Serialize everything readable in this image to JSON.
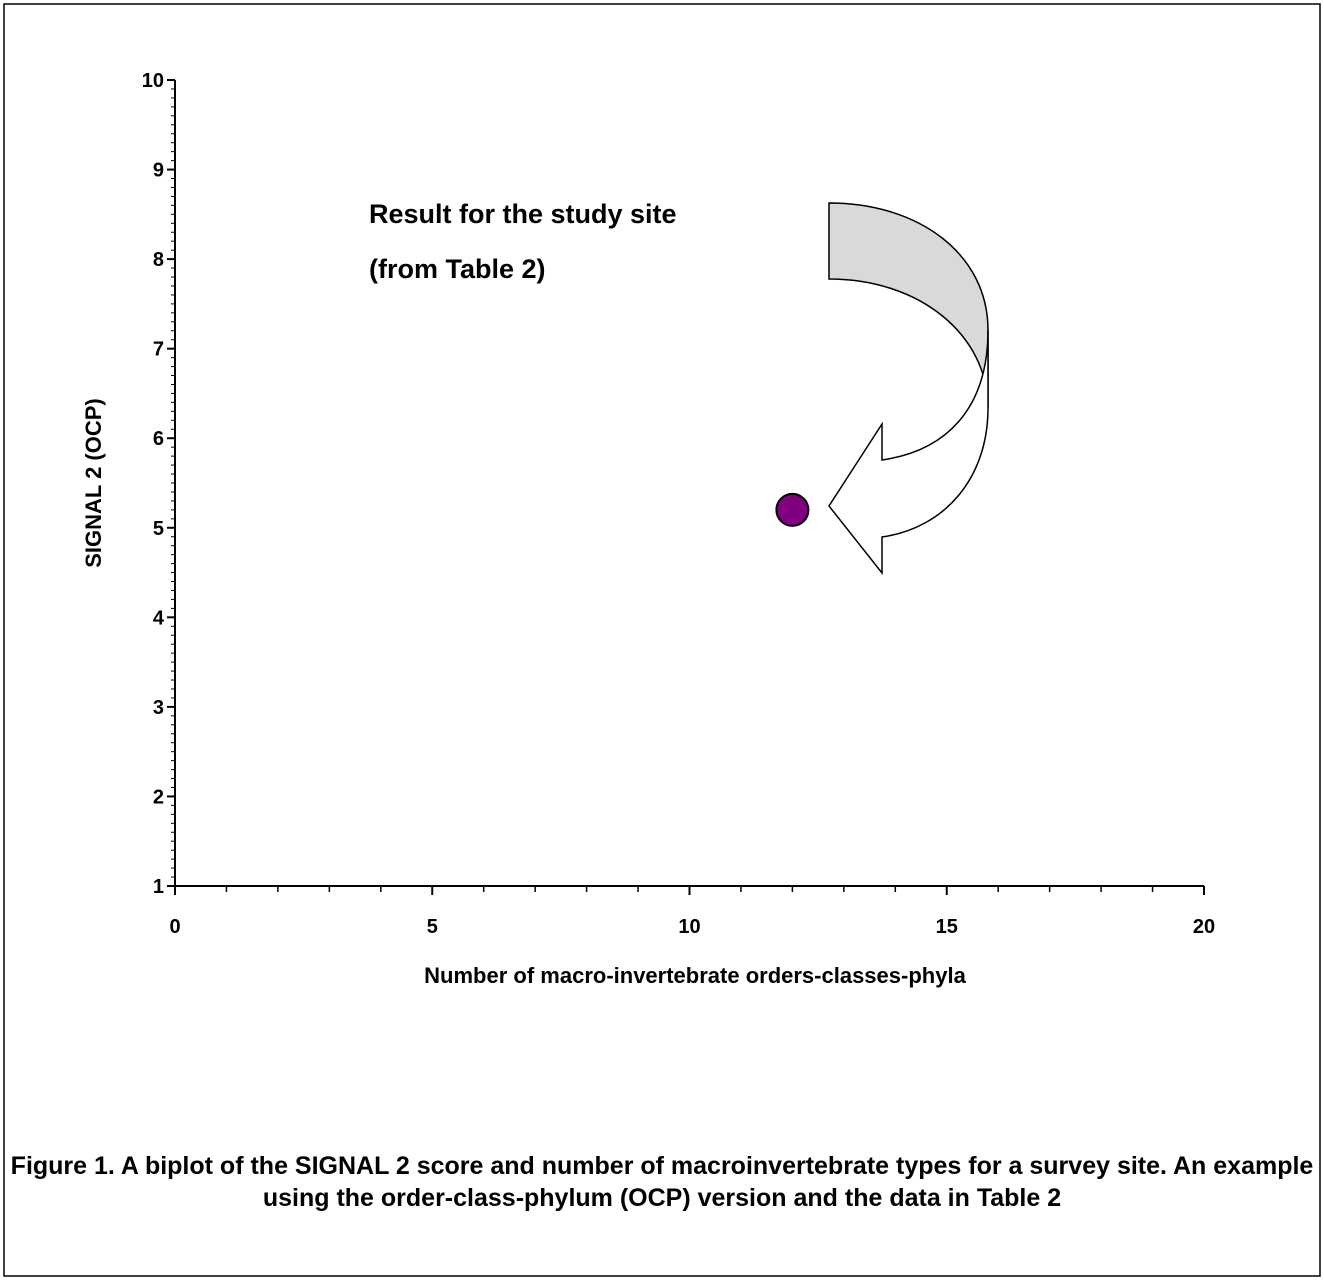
{
  "chart_data": {
    "type": "scatter",
    "xlabel": "Number of macro-invertebrate orders-classes-phyla",
    "ylabel": "SIGNAL 2 (OCP)",
    "xlim": [
      0,
      20
    ],
    "ylim": [
      1,
      10
    ],
    "x_ticks": [
      0,
      5,
      10,
      15,
      20
    ],
    "y_ticks": [
      1,
      2,
      3,
      4,
      5,
      6,
      7,
      8,
      9,
      10
    ],
    "x_minor_step": 1,
    "y_minor_step": 0.1,
    "grid": false,
    "series": [
      {
        "points": [
          {
            "x": 12,
            "y": 5.2
          }
        ],
        "color": "#800080"
      }
    ],
    "annotation": {
      "lines": [
        "Result for the study site",
        "(from Table 2)"
      ]
    }
  },
  "caption": "Figure 1. A biplot of the SIGNAL 2 score and number of macroinvertebrate types for a survey site. An example using the order-class-phylum (OCP) version and the data in Table 2",
  "colors": {
    "point": "#800080",
    "arrow_fill": "#d9d9d9",
    "axis": "#000000"
  }
}
